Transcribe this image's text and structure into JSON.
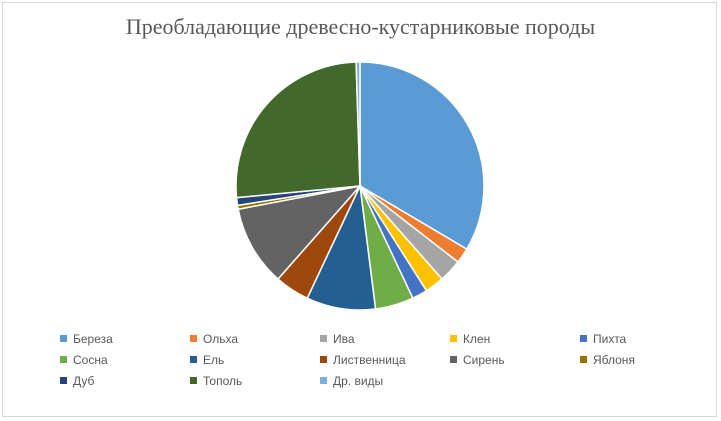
{
  "chart_data": {
    "type": "pie",
    "title": "Преобладающие древесно-кустарниковые породы",
    "legend_position": "bottom",
    "slices": [
      {
        "label": "Береза",
        "value": 33.5,
        "color": "#5b9bd5"
      },
      {
        "label": "Ольха",
        "value": 2.0,
        "color": "#ed7d31"
      },
      {
        "label": "Ива",
        "value": 3.0,
        "color": "#a5a5a5"
      },
      {
        "label": "Клен",
        "value": 2.5,
        "color": "#ffc000"
      },
      {
        "label": "Пихта",
        "value": 2.0,
        "color": "#4472c4"
      },
      {
        "label": "Сосна",
        "value": 5.0,
        "color": "#70ad47"
      },
      {
        "label": "Ель",
        "value": 9.0,
        "color": "#255e91"
      },
      {
        "label": "Лиственница",
        "value": 4.5,
        "color": "#9e480e"
      },
      {
        "label": "Сирень",
        "value": 10.5,
        "color": "#636363"
      },
      {
        "label": "Яблоня",
        "value": 0.5,
        "color": "#997300"
      },
      {
        "label": "Дуб",
        "value": 1.0,
        "color": "#264478"
      },
      {
        "label": "Тополь",
        "value": 26.0,
        "color": "#43682b"
      },
      {
        "label": "Др. виды",
        "value": 0.5,
        "color": "#7cafdd"
      }
    ]
  }
}
